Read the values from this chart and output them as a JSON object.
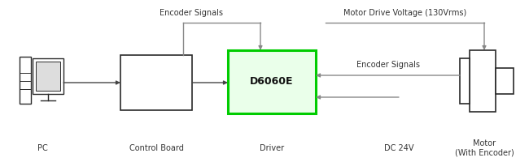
{
  "bg_color": "#ffffff",
  "text_color": "#333333",
  "box_color": "#2a2a2a",
  "green_fill": "#eaffea",
  "green_border": "#00cc00",
  "arrow_color": "#888888",
  "dark_arrow": "#444444",
  "labels": {
    "pc": "PC",
    "control_board": "Control Board",
    "driver": "Driver",
    "dc24v": "DC 24V",
    "motor": "Motor\n(With Encoder)",
    "d6060e": "D6060E",
    "encoder_signals_top": "Encoder Signals",
    "motor_drive_voltage": "Motor Drive Voltage (130Vrms)",
    "encoder_signals_mid": "Encoder Signals"
  }
}
